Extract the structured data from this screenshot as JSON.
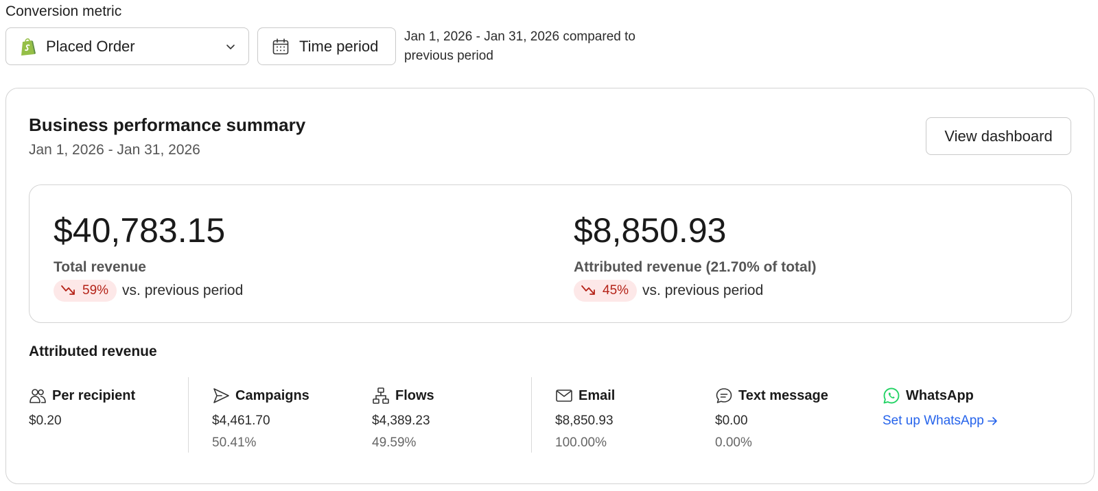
{
  "header": {
    "metric_label": "Conversion metric",
    "metric_select": {
      "value": "Placed Order",
      "icon": "shopify-icon"
    },
    "time_period_button": {
      "label": "Time period",
      "icon": "calendar-icon"
    },
    "comparison_text": "Jan 1, 2026 - Jan 31, 2026 compared to previous period"
  },
  "summary": {
    "title": "Business performance summary",
    "date_range": "Jan 1, 2026 - Jan 31, 2026",
    "view_button": "View dashboard",
    "total": {
      "value": "$40,783.15",
      "label": "Total revenue",
      "change": "59%",
      "direction": "down",
      "comparison": "vs. previous period"
    },
    "attributed": {
      "value": "$8,850.93",
      "label": "Attributed revenue (21.70% of total)",
      "change": "45%",
      "direction": "down",
      "comparison": "vs. previous period"
    },
    "colors": {
      "negative": "#b42318",
      "negative_bg": "#fde8e8",
      "link": "#2563eb",
      "whatsapp": "#25d366"
    }
  },
  "attributed_revenue": {
    "title": "Attributed revenue",
    "per_recipient": {
      "label": "Per recipient",
      "icon": "people-icon",
      "value": "$0.20"
    },
    "campaigns": {
      "label": "Campaigns",
      "icon": "send-icon",
      "value": "$4,461.70",
      "percent": "50.41%"
    },
    "flows": {
      "label": "Flows",
      "icon": "flow-icon",
      "value": "$4,389.23",
      "percent": "49.59%"
    },
    "email": {
      "label": "Email",
      "icon": "mail-icon",
      "value": "$8,850.93",
      "percent": "100.00%"
    },
    "text_message": {
      "label": "Text message",
      "icon": "chat-icon",
      "value": "$0.00",
      "percent": "0.00%"
    },
    "whatsapp": {
      "label": "WhatsApp",
      "icon": "whatsapp-icon",
      "link": "Set up WhatsApp"
    }
  }
}
